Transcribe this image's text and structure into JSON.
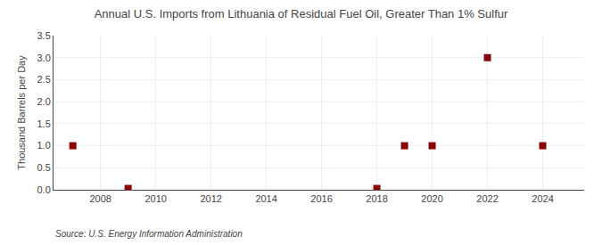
{
  "chart_data": {
    "type": "scatter",
    "title": "Annual U.S. Imports from Lithuania of Residual Fuel Oil, Greater Than 1% Sulfur",
    "ylabel": "Thousand Barrels per Day",
    "annotations": [
      "Source: U.S. Energy Information Administration"
    ],
    "x": [
      2007,
      2009,
      2018,
      2019,
      2020,
      2022,
      2024
    ],
    "values": [
      1.0,
      0.03,
      0.03,
      1.0,
      1.0,
      3.0,
      1.0
    ],
    "color": "#8b0000",
    "marker": "square",
    "xlim": [
      2006.3,
      2025.5
    ],
    "ylim": [
      0.0,
      3.5
    ],
    "xticks": [
      2008,
      2010,
      2012,
      2014,
      2016,
      2018,
      2020,
      2022,
      2024
    ],
    "yticks": [
      {
        "value": 0,
        "label": "0.0"
      },
      0.5,
      {
        "value": 1,
        "label": "1.0"
      },
      1.5,
      {
        "value": 2,
        "label": "2.0"
      },
      2.5,
      {
        "value": 3,
        "label": "3.0"
      },
      3.5
    ],
    "grid": true
  }
}
